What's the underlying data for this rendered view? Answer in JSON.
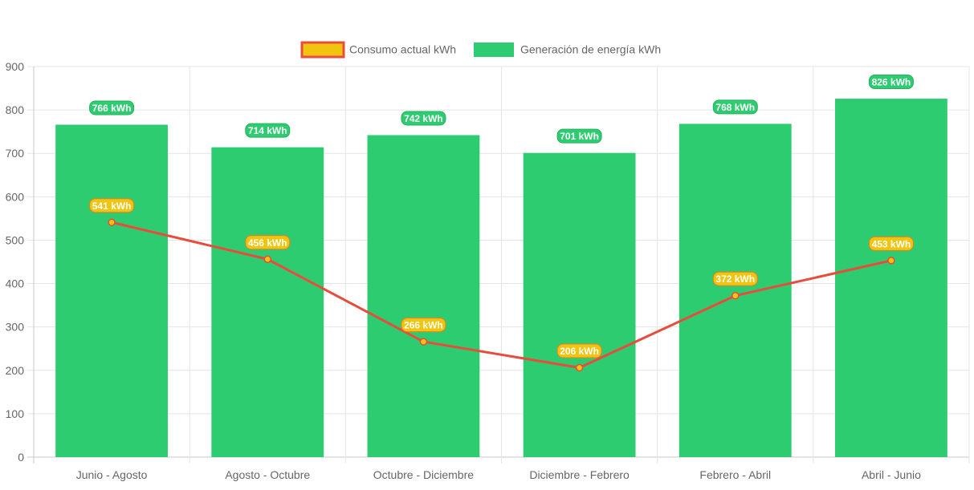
{
  "chart_data": {
    "type": "bar",
    "categories": [
      "Junio - Agosto",
      "Agosto - Octubre",
      "Octubre - Diciembre",
      "Diciembre - Febrero",
      "Febrero - Abril",
      "Abril - Junio"
    ],
    "series": [
      {
        "name": "Consumo actual kWh",
        "type": "line",
        "values": [
          541,
          456,
          266,
          206,
          372,
          453
        ],
        "labels": [
          "541 kWh",
          "456 kWh",
          "266 kWh",
          "206 kWh",
          "372 kWh",
          "453 kWh"
        ],
        "color": "#e74c3c",
        "fill_color": "#f1c40f"
      },
      {
        "name": "Generación de energía kWh",
        "type": "bar",
        "values": [
          766,
          714,
          742,
          701,
          768,
          826
        ],
        "labels": [
          "766 kWh",
          "714 kWh",
          "742 kWh",
          "701 kWh",
          "768 kWh",
          "826 kWh"
        ],
        "color": "#2ecc71"
      }
    ],
    "yticks": [
      "0",
      "100",
      "200",
      "300",
      "400",
      "500",
      "600",
      "700",
      "800",
      "900"
    ],
    "ylim": [
      0,
      900
    ],
    "legend_position": "top",
    "grid": true
  }
}
